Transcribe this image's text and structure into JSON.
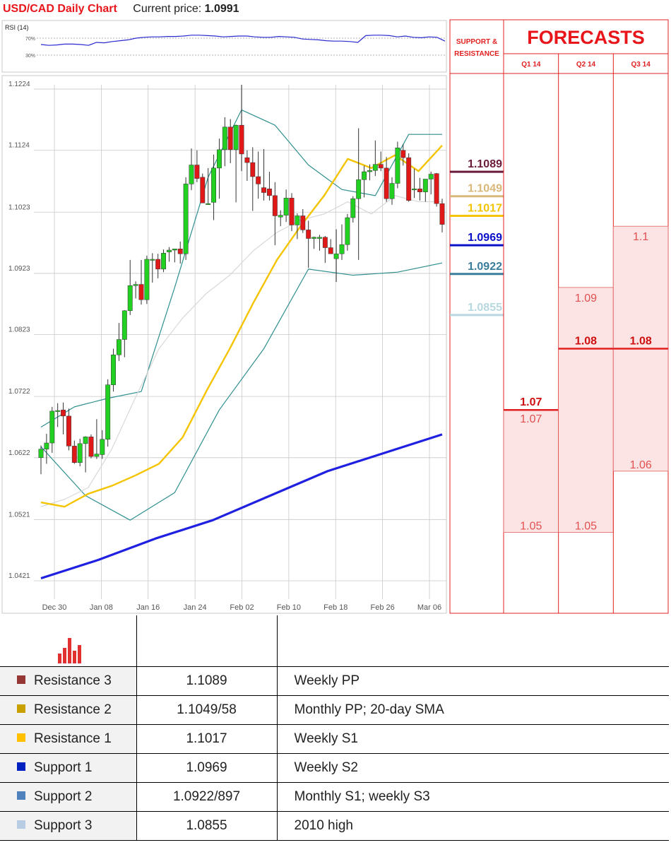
{
  "header": {
    "title": "USD/CAD Daily Chart",
    "current_label": "Current price:",
    "current_value": "1.0991"
  },
  "rsi": {
    "label": "RSI (14)",
    "level_high": "70%",
    "level_low": "30%",
    "values": [
      55,
      53,
      54,
      56,
      56,
      55,
      53,
      60,
      59,
      62,
      64,
      66,
      70,
      72,
      73,
      73,
      74,
      74,
      75,
      77,
      77,
      76,
      75,
      73,
      74,
      75,
      75,
      73,
      72,
      72,
      74,
      73,
      72,
      68,
      67,
      66,
      64,
      63,
      63,
      62,
      60,
      76,
      77,
      77,
      76,
      73,
      75,
      72,
      71,
      73,
      72,
      63
    ]
  },
  "chart_data": {
    "type": "candlestick",
    "title": "USD/CAD Daily Chart",
    "y_ticks": [
      "1.1224",
      "1.1124",
      "1.1023",
      "1.0923",
      "1.0823",
      "1.0722",
      "1.0622",
      "1.0521",
      "1.0421"
    ],
    "x_ticks": [
      "Dec 30",
      "Jan 08",
      "Jan 16",
      "Jan 24",
      "Feb 02",
      "Feb 10",
      "Feb 18",
      "Feb 26",
      "Mar 06"
    ],
    "ylim": [
      1.0391,
      1.1231
    ],
    "candles": [
      {
        "o": 1.0622,
        "h": 1.0642,
        "l": 1.0595,
        "c": 1.0636
      },
      {
        "o": 1.0636,
        "h": 1.0661,
        "l": 1.0612,
        "c": 1.0646
      },
      {
        "o": 1.0646,
        "h": 1.0705,
        "l": 1.063,
        "c": 1.0698
      },
      {
        "o": 1.0698,
        "h": 1.0711,
        "l": 1.0672,
        "c": 1.0699
      },
      {
        "o": 1.07,
        "h": 1.0712,
        "l": 1.066,
        "c": 1.069
      },
      {
        "o": 1.069,
        "h": 1.0702,
        "l": 1.0634,
        "c": 1.0641
      },
      {
        "o": 1.0641,
        "h": 1.065,
        "l": 1.0612,
        "c": 1.0614
      },
      {
        "o": 1.0614,
        "h": 1.0653,
        "l": 1.0608,
        "c": 1.0645
      },
      {
        "o": 1.0645,
        "h": 1.0657,
        "l": 1.0598,
        "c": 1.0656
      },
      {
        "o": 1.0656,
        "h": 1.066,
        "l": 1.0621,
        "c": 1.0624
      },
      {
        "o": 1.0624,
        "h": 1.0685,
        "l": 1.062,
        "c": 1.0628
      },
      {
        "o": 1.0627,
        "h": 1.0667,
        "l": 1.062,
        "c": 1.0652
      },
      {
        "o": 1.0652,
        "h": 1.075,
        "l": 1.064,
        "c": 1.0741
      },
      {
        "o": 1.0741,
        "h": 1.08,
        "l": 1.073,
        "c": 1.079
      },
      {
        "o": 1.079,
        "h": 1.0842,
        "l": 1.078,
        "c": 1.0815
      },
      {
        "o": 1.0815,
        "h": 1.0863,
        "l": 1.0786,
        "c": 1.0862
      },
      {
        "o": 1.0862,
        "h": 1.0945,
        "l": 1.0855,
        "c": 1.0903
      },
      {
        "o": 1.0903,
        "h": 1.091,
        "l": 1.0882,
        "c": 1.0905
      },
      {
        "o": 1.0905,
        "h": 1.0945,
        "l": 1.0872,
        "c": 1.088
      },
      {
        "o": 1.088,
        "h": 1.0952,
        "l": 1.0873,
        "c": 1.0946
      },
      {
        "o": 1.0946,
        "h": 1.0956,
        "l": 1.0908,
        "c": 1.0946
      },
      {
        "o": 1.0946,
        "h": 1.0955,
        "l": 1.0915,
        "c": 1.093
      },
      {
        "o": 1.093,
        "h": 1.0962,
        "l": 1.0925,
        "c": 1.0956
      },
      {
        "o": 1.0958,
        "h": 1.0966,
        "l": 1.0942,
        "c": 1.0961
      },
      {
        "o": 1.0961,
        "h": 1.0963,
        "l": 1.0941,
        "c": 1.0963
      },
      {
        "o": 1.0963,
        "h": 1.0975,
        "l": 1.0939,
        "c": 1.0955
      },
      {
        "o": 1.0955,
        "h": 1.108,
        "l": 1.0945,
        "c": 1.1069
      },
      {
        "o": 1.1069,
        "h": 1.1127,
        "l": 1.1059,
        "c": 1.11
      },
      {
        "o": 1.11,
        "h": 1.1124,
        "l": 1.1072,
        "c": 1.1078
      },
      {
        "o": 1.108,
        "h": 1.1086,
        "l": 1.1045,
        "c": 1.1038
      },
      {
        "o": 1.1037,
        "h": 1.1095,
        "l": 1.1035,
        "c": 1.1037
      },
      {
        "o": 1.1039,
        "h": 1.1117,
        "l": 1.101,
        "c": 1.1095
      },
      {
        "o": 1.1095,
        "h": 1.1143,
        "l": 1.1045,
        "c": 1.1125
      },
      {
        "o": 1.1125,
        "h": 1.1178,
        "l": 1.1098,
        "c": 1.1162
      },
      {
        "o": 1.1162,
        "h": 1.1175,
        "l": 1.1103,
        "c": 1.1125
      },
      {
        "o": 1.1125,
        "h": 1.1166,
        "l": 1.1039,
        "c": 1.1165
      },
      {
        "o": 1.1165,
        "h": 1.1231,
        "l": 1.109,
        "c": 1.1118
      },
      {
        "o": 1.1112,
        "h": 1.1124,
        "l": 1.1074,
        "c": 1.1104
      },
      {
        "o": 1.1104,
        "h": 1.1129,
        "l": 1.1025,
        "c": 1.1081
      },
      {
        "o": 1.1081,
        "h": 1.1122,
        "l": 1.1045,
        "c": 1.1069
      },
      {
        "o": 1.1063,
        "h": 1.1126,
        "l": 1.1042,
        "c": 1.1055
      },
      {
        "o": 1.1061,
        "h": 1.1089,
        "l": 1.1042,
        "c": 1.105
      },
      {
        "o": 1.105,
        "h": 1.1072,
        "l": 1.0969,
        "c": 1.1017
      },
      {
        "o": 1.1015,
        "h": 1.1026,
        "l": 1.1,
        "c": 1.1018
      },
      {
        "o": 1.1018,
        "h": 1.106,
        "l": 1.1007,
        "c": 1.1046
      },
      {
        "o": 1.1046,
        "h": 1.1054,
        "l": 1.0992,
        "c": 1.1002
      },
      {
        "o": 1.1002,
        "h": 1.1021,
        "l": 1.0979,
        "c": 1.1017
      },
      {
        "o": 1.1017,
        "h": 1.1028,
        "l": 1.0989,
        "c": 1.0994
      },
      {
        "o": 1.0994,
        "h": 1.1009,
        "l": 1.0932,
        "c": 1.098
      },
      {
        "o": 1.098,
        "h": 1.0983,
        "l": 1.0963,
        "c": 1.0982
      },
      {
        "o": 1.098,
        "h": 1.0986,
        "l": 1.096,
        "c": 1.0982
      },
      {
        "o": 1.0982,
        "h": 1.0984,
        "l": 1.094,
        "c": 1.0965
      },
      {
        "o": 1.0965,
        "h": 1.0979,
        "l": 1.0955,
        "c": 1.0955
      },
      {
        "o": 1.0947,
        "h": 1.0995,
        "l": 1.0909,
        "c": 1.0955
      },
      {
        "o": 1.0955,
        "h": 1.1003,
        "l": 1.0945,
        "c": 1.097
      },
      {
        "o": 1.097,
        "h": 1.102,
        "l": 1.096,
        "c": 1.1014
      },
      {
        "o": 1.1014,
        "h": 1.1049,
        "l": 1.1006,
        "c": 1.1045
      },
      {
        "o": 1.1045,
        "h": 1.116,
        "l": 1.0945,
        "c": 1.1076
      },
      {
        "o": 1.1076,
        "h": 1.1099,
        "l": 1.1047,
        "c": 1.1089
      },
      {
        "o": 1.1089,
        "h": 1.1101,
        "l": 1.1075,
        "c": 1.1091
      },
      {
        "o": 1.1091,
        "h": 1.114,
        "l": 1.1082,
        "c": 1.1101
      },
      {
        "o": 1.1101,
        "h": 1.1122,
        "l": 1.109,
        "c": 1.1095
      },
      {
        "o": 1.1095,
        "h": 1.1113,
        "l": 1.104,
        "c": 1.1045
      },
      {
        "o": 1.1045,
        "h": 1.108,
        "l": 1.1035,
        "c": 1.107
      },
      {
        "o": 1.107,
        "h": 1.1138,
        "l": 1.1062,
        "c": 1.1128
      },
      {
        "o": 1.1124,
        "h": 1.1134,
        "l": 1.1099,
        "c": 1.1112
      },
      {
        "o": 1.1112,
        "h": 1.1119,
        "l": 1.104,
        "c": 1.1042
      },
      {
        "o": 1.106,
        "h": 1.1094,
        "l": 1.1046,
        "c": 1.1061
      },
      {
        "o": 1.1061,
        "h": 1.1079,
        "l": 1.1042,
        "c": 1.1056
      },
      {
        "o": 1.1056,
        "h": 1.107,
        "l": 1.104,
        "c": 1.1077
      },
      {
        "o": 1.1077,
        "h": 1.1089,
        "l": 1.1052,
        "c": 1.1085
      },
      {
        "o": 1.1086,
        "h": 1.1087,
        "l": 1.1032,
        "c": 1.1037
      },
      {
        "o": 1.1037,
        "h": 1.1045,
        "l": 1.099,
        "c": 1.1003
      }
    ],
    "series": [
      {
        "values": [
          [
            1.0549,
            1.0542
          ],
          [
            1.061,
            1.0563
          ],
          [
            1.07,
            1.0576
          ],
          [
            1.0722,
            1.0593
          ],
          [
            1.084,
            1.0612
          ],
          [
            1.0925,
            1.0655
          ],
          [
            1.1,
            1.073
          ],
          [
            1.1045,
            1.08
          ],
          [
            1.1124,
            1.0875
          ],
          [
            1.114,
            1.0945
          ],
          [
            1.1095,
            1.1
          ],
          [
            1.106,
            1.105
          ],
          [
            1.104,
            1.111
          ],
          [
            1.1045,
            1.1095
          ],
          [
            1.105,
            1.1116
          ],
          [
            1.1035,
            1.109
          ],
          [
            1.1043,
            1.1132
          ]
        ]
      },
      {
        "values": [
          [
            1.0542,
            1.0554
          ],
          [
            1.0563,
            1.0573
          ],
          [
            1.0576,
            1.0636
          ],
          [
            1.0593,
            1.072
          ],
          [
            1.0612,
            1.08
          ],
          [
            1.0655,
            1.085
          ],
          [
            1.073,
            1.089
          ],
          [
            1.08,
            1.092
          ],
          [
            1.0875,
            1.096
          ],
          [
            1.0945,
            1.099
          ],
          [
            1.1,
            1.101
          ],
          [
            1.105,
            1.102
          ],
          [
            1.111,
            1.104
          ],
          [
            1.1095,
            1.102
          ],
          [
            1.1116,
            1.105
          ],
          [
            1.109,
            1.104
          ],
          [
            1.1132,
            1.104
          ]
        ]
      },
      {
        "values": [
          [
            1.0425,
            1.0455
          ],
          [
            1.0455,
            1.049
          ],
          [
            1.049,
            1.052
          ],
          [
            1.052,
            1.056
          ],
          [
            1.056,
            1.06
          ],
          [
            1.06,
            1.063
          ],
          [
            1.063,
            1.066
          ]
        ]
      },
      {
        "values": [
          [
            1.0672,
            1.0705
          ],
          [
            1.0705,
            1.0719
          ],
          [
            1.0719,
            1.073
          ],
          [
            1.073,
            1.09
          ],
          [
            1.09,
            1.108
          ],
          [
            1.108,
            1.119
          ],
          [
            1.119,
            1.1165
          ],
          [
            1.1165,
            1.11
          ],
          [
            1.11,
            1.106
          ],
          [
            1.106,
            1.105
          ],
          [
            1.105,
            1.115
          ],
          [
            1.115,
            1.115
          ]
        ]
      },
      {
        "values": [
          [
            1.064,
            1.056
          ],
          [
            1.056,
            1.052
          ],
          [
            1.052,
            1.0565
          ],
          [
            1.0565,
            1.07
          ],
          [
            1.07,
            1.08
          ],
          [
            1.08,
            1.093
          ],
          [
            1.093,
            1.092
          ],
          [
            1.092,
            1.0925
          ],
          [
            1.0925,
            1.094
          ]
        ]
      }
    ],
    "support_resistance": {
      "header": "SUPPORT & RESISTANCE",
      "levels": [
        {
          "label": "1.1089",
          "value": 1.1089,
          "color": "#6b1b3a"
        },
        {
          "label": "1.1049",
          "value": 1.1049,
          "color": "#d9b87a"
        },
        {
          "label": "1.1017",
          "value": 1.1017,
          "color": "#f5c400"
        },
        {
          "label": "1.0969",
          "value": 1.0969,
          "color": "#0a10c8"
        },
        {
          "label": "1.0922",
          "value": 1.0922,
          "color": "#3a7d9b"
        },
        {
          "label": "1.0855",
          "value": 1.0855,
          "color": "#b8d8e0"
        }
      ]
    },
    "forecasts": {
      "title": "FORECASTS",
      "columns": [
        {
          "name": "Q1 14",
          "high": 1.07,
          "high_label": "1.07",
          "mid": 1.07,
          "mid_label": "1.07",
          "low": 1.05,
          "low_label": "1.05"
        },
        {
          "name": "Q2 14",
          "high": 1.09,
          "high_label": "1.09",
          "mid": 1.08,
          "mid_label": "1.08",
          "low": 1.05,
          "low_label": "1.05"
        },
        {
          "name": "Q3 14",
          "high": 1.1,
          "high_label": "1.1",
          "mid": 1.08,
          "mid_label": "1.08",
          "low": 1.06,
          "low_label": "1.06"
        }
      ]
    }
  },
  "levels_table": [
    {
      "name": "Resistance 3",
      "value": "1.1089",
      "note": "Weekly PP",
      "color": "#953735"
    },
    {
      "name": "Resistance 2",
      "value": "1.1049/58",
      "note": "Monthly PP; 20-day SMA",
      "color": "#c8a000"
    },
    {
      "name": "Resistance 1",
      "value": "1.1017",
      "note": "Weekly S1",
      "color": "#ffc000"
    },
    {
      "name": "Support 1",
      "value": "1.0969",
      "note": "Weekly S2",
      "color": "#0020c0"
    },
    {
      "name": "Support 2",
      "value": "1.0922/897",
      "note": "Monthly S1; weekly S3",
      "color": "#4f81bd"
    },
    {
      "name": "Support 3",
      "value": "1.0855",
      "note": "2010 high",
      "color": "#b8cce4"
    }
  ]
}
